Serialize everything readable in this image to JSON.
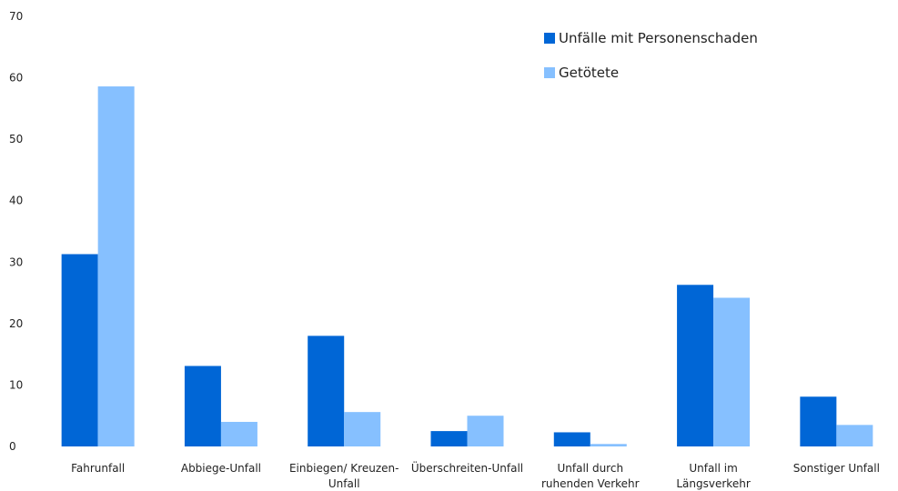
{
  "chart_data": {
    "type": "bar",
    "title": "",
    "xlabel": "",
    "ylabel": "",
    "ylim": [
      0,
      70
    ],
    "yticks": [
      0,
      10,
      20,
      30,
      40,
      50,
      60,
      70
    ],
    "grid": false,
    "legend_position": "top-right",
    "categories": [
      [
        "Fahrunfall"
      ],
      [
        "Abbiege-Unfall"
      ],
      [
        "Einbiegen/ Kreuzen-",
        "Unfall"
      ],
      [
        "Überschreiten-Unfall"
      ],
      [
        "Unfall durch",
        "ruhenden Verkehr"
      ],
      [
        "Unfall im",
        "Längsverkehr"
      ],
      [
        "Sonstiger Unfall"
      ]
    ],
    "series": [
      {
        "name": "Unfälle mit Personenschaden",
        "color": "#0066d6",
        "values": [
          31.3,
          13.1,
          18.0,
          2.5,
          2.3,
          26.3,
          8.1
        ]
      },
      {
        "name": "Getötete",
        "color": "#86c0ff",
        "values": [
          58.6,
          4.0,
          5.6,
          5.0,
          0.4,
          24.2,
          3.5
        ]
      }
    ]
  }
}
